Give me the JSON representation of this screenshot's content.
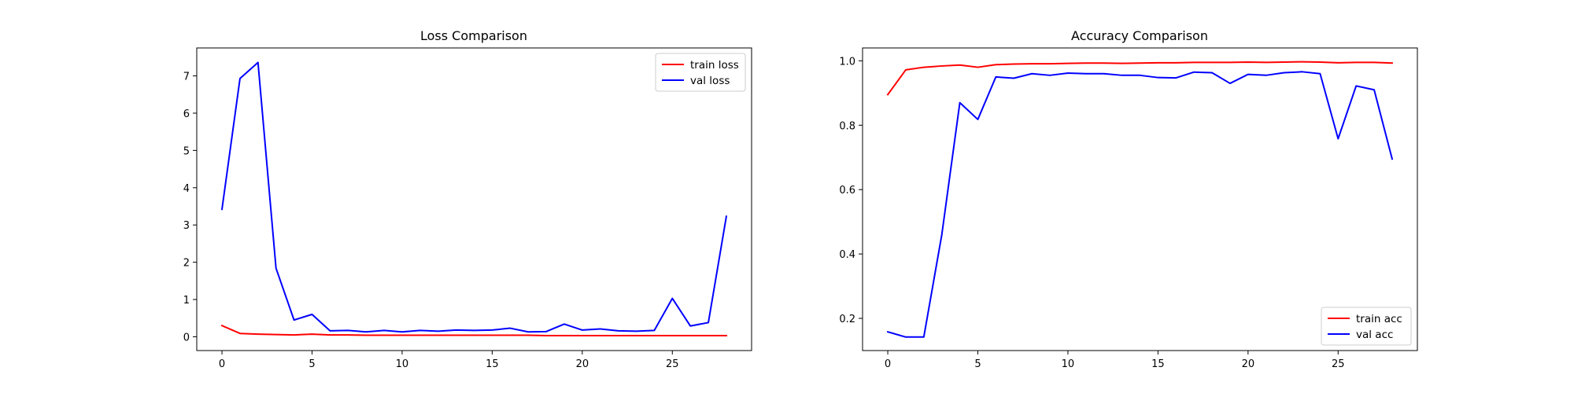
{
  "chart_data": [
    {
      "type": "line",
      "title": "Loss Comparison",
      "xlabel": "",
      "ylabel": "",
      "xlim": [
        -1.4,
        29.4
      ],
      "ylim": [
        -0.37,
        7.75
      ],
      "xticks": [
        0,
        5,
        10,
        15,
        20,
        25
      ],
      "yticks": [
        0,
        1,
        2,
        3,
        4,
        5,
        6,
        7
      ],
      "grid": false,
      "legend": "top-right",
      "x": [
        0,
        1,
        2,
        3,
        4,
        5,
        6,
        7,
        8,
        9,
        10,
        11,
        12,
        13,
        14,
        15,
        16,
        17,
        18,
        19,
        20,
        21,
        22,
        23,
        24,
        25,
        26,
        27,
        28
      ],
      "series": [
        {
          "name": "train loss",
          "color": "#ff0000",
          "values": [
            0.3,
            0.09,
            0.07,
            0.06,
            0.05,
            0.07,
            0.05,
            0.05,
            0.04,
            0.04,
            0.04,
            0.04,
            0.04,
            0.04,
            0.04,
            0.04,
            0.04,
            0.04,
            0.03,
            0.03,
            0.03,
            0.03,
            0.03,
            0.03,
            0.03,
            0.03,
            0.03,
            0.03,
            0.03
          ]
        },
        {
          "name": "val loss",
          "color": "#0000ff",
          "values": [
            3.42,
            6.93,
            7.36,
            1.84,
            0.45,
            0.6,
            0.16,
            0.17,
            0.13,
            0.17,
            0.13,
            0.17,
            0.15,
            0.18,
            0.17,
            0.18,
            0.23,
            0.13,
            0.14,
            0.34,
            0.18,
            0.21,
            0.16,
            0.15,
            0.17,
            1.03,
            0.29,
            0.38,
            3.23
          ]
        }
      ]
    },
    {
      "type": "line",
      "title": "Accuracy Comparison",
      "xlabel": "",
      "ylabel": "",
      "xlim": [
        -1.4,
        29.4
      ],
      "ylim": [
        0.1,
        1.04
      ],
      "xticks": [
        0,
        5,
        10,
        15,
        20,
        25
      ],
      "yticks": [
        0.2,
        0.4,
        0.6,
        0.8,
        1.0
      ],
      "grid": false,
      "legend": "bottom-right",
      "x": [
        0,
        1,
        2,
        3,
        4,
        5,
        6,
        7,
        8,
        9,
        10,
        11,
        12,
        13,
        14,
        15,
        16,
        17,
        18,
        19,
        20,
        21,
        22,
        23,
        24,
        25,
        26,
        27,
        28
      ],
      "series": [
        {
          "name": "train acc",
          "color": "#ff0000",
          "values": [
            0.895,
            0.972,
            0.98,
            0.984,
            0.987,
            0.98,
            0.988,
            0.99,
            0.991,
            0.991,
            0.992,
            0.993,
            0.993,
            0.992,
            0.993,
            0.994,
            0.994,
            0.995,
            0.995,
            0.995,
            0.996,
            0.995,
            0.996,
            0.997,
            0.996,
            0.994,
            0.995,
            0.995,
            0.993
          ]
        },
        {
          "name": "val acc",
          "color": "#0000ff",
          "values": [
            0.158,
            0.142,
            0.142,
            0.46,
            0.87,
            0.818,
            0.95,
            0.946,
            0.96,
            0.955,
            0.962,
            0.96,
            0.96,
            0.955,
            0.955,
            0.948,
            0.947,
            0.965,
            0.963,
            0.93,
            0.958,
            0.955,
            0.963,
            0.966,
            0.96,
            0.758,
            0.922,
            0.91,
            0.695
          ]
        }
      ]
    }
  ]
}
